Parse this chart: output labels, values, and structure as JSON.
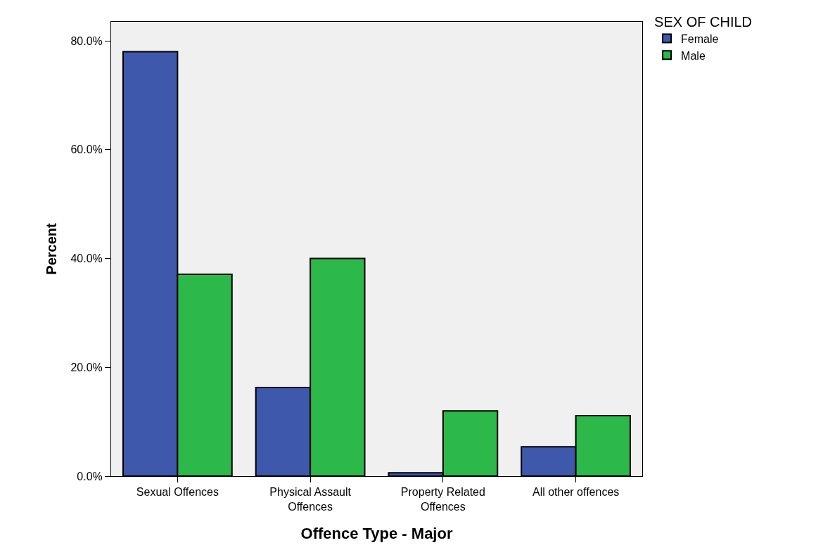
{
  "chart_data": {
    "type": "bar",
    "xlabel": "Offence Type - Major",
    "ylabel": "Percent",
    "legend_title": "SEX OF CHILD",
    "categories": [
      "Sexual Offences",
      "Physical Assault Offences",
      "Property Related Offences",
      "All other offences"
    ],
    "series": [
      {
        "name": "Female",
        "color": "#3e58ac",
        "values": [
          78.0,
          16.3,
          0.6,
          5.4
        ]
      },
      {
        "name": "Male",
        "color": "#2db84a",
        "values": [
          37.1,
          40.0,
          12.0,
          11.1
        ]
      }
    ],
    "ylim": [
      0,
      83.5
    ],
    "yticks": [
      {
        "value": 0,
        "label": "0.0%"
      },
      {
        "value": 20,
        "label": "20.0%"
      },
      {
        "value": 40,
        "label": "40.0%"
      },
      {
        "value": 60,
        "label": "60.0%"
      },
      {
        "value": 80,
        "label": "80.0%"
      }
    ],
    "grid": false,
    "legend": "top right"
  }
}
